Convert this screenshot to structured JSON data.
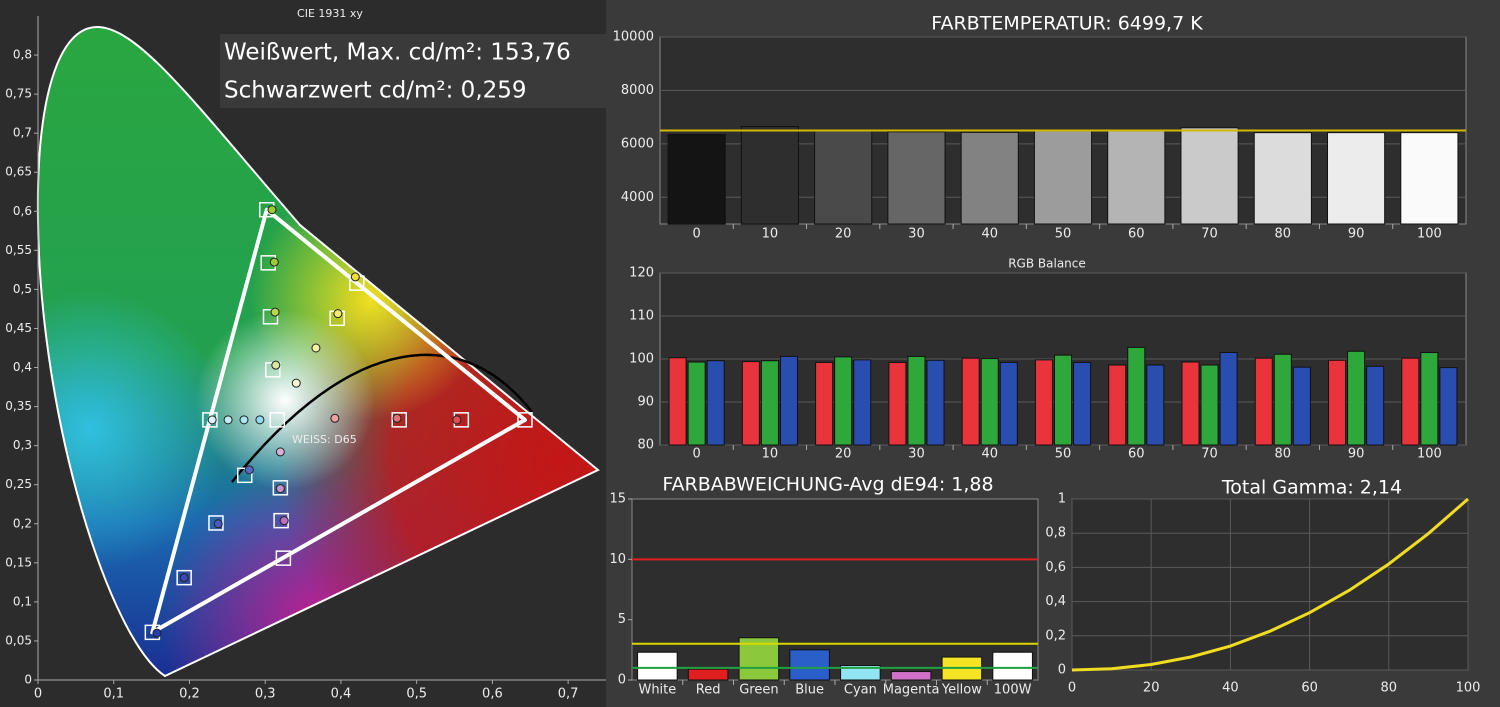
{
  "chart_data": [
    {
      "type": "scatter",
      "title": "CIE 1931 xy",
      "annotations": [
        "Weißwert, Max. cd/m²: 153,76",
        "Schwarzwert cd/m²: 0,259",
        "WEISS: D65"
      ],
      "xlim": [
        0,
        0.75
      ],
      "ylim": [
        0,
        0.85
      ],
      "xticks": [
        0,
        {
          "value": 0.1,
          "label": "0,1"
        },
        {
          "value": 0.2,
          "label": "0,2"
        },
        {
          "value": 0.3,
          "label": "0,3"
        },
        {
          "value": 0.4,
          "label": "0,4"
        },
        {
          "value": 0.5,
          "label": "0,5"
        },
        {
          "value": 0.6,
          "label": "0,6"
        },
        {
          "value": 0.7,
          "label": "0,7"
        }
      ],
      "yticks": [
        0,
        {
          "value": 0.05,
          "label": "0,05"
        },
        {
          "value": 0.1,
          "label": "0,1"
        },
        {
          "value": 0.15,
          "label": "0,15"
        },
        {
          "value": 0.2,
          "label": "0,2"
        },
        {
          "value": 0.25,
          "label": "0,25"
        },
        {
          "value": 0.3,
          "label": "0,3"
        },
        {
          "value": 0.35,
          "label": "0,35"
        },
        {
          "value": 0.4,
          "label": "0,4"
        },
        {
          "value": 0.45,
          "label": "0,45"
        },
        {
          "value": 0.5,
          "label": "0,5"
        },
        {
          "value": 0.55,
          "label": "0,55"
        },
        {
          "value": 0.6,
          "label": "0,6"
        },
        {
          "value": 0.65,
          "label": "0,65"
        },
        {
          "value": 0.7,
          "label": "0,7"
        },
        {
          "value": 0.75,
          "label": "0,75"
        },
        {
          "value": 0.8,
          "label": "0,8"
        }
      ],
      "gamut": {
        "color": "#ffffff",
        "x": [
          0.643,
          0.302,
          0.151
        ],
        "y": [
          0.333,
          0.602,
          0.061
        ]
      },
      "series": [
        {
          "marker": "square",
          "color": "#ffffff",
          "x": [
            0.302,
            0.304,
            0.307,
            0.31,
            0.421,
            0.395,
            0.477,
            0.559,
            0.643,
            0.316,
            0.227,
            0.273,
            0.235,
            0.193,
            0.151,
            0.32,
            0.321,
            0.324
          ],
          "y": [
            0.602,
            0.534,
            0.465,
            0.397,
            0.508,
            0.463,
            0.333,
            0.333,
            0.333,
            0.333,
            0.333,
            0.262,
            0.201,
            0.131,
            0.061,
            0.246,
            0.204,
            0.156
          ]
        },
        {
          "marker": "circle",
          "color": "#222222",
          "colors": [
            "#9acd32",
            "#9acd32",
            "#b5d84a",
            "#d8e8a0",
            "#f0e030",
            "#f2ea70",
            "#f5efa8",
            "#f8f4d0",
            "#f0a0a0",
            "#e87070",
            "#e05050",
            "#d8f4fa",
            "#c0ecf6",
            "#a8e4f2",
            "#90dcee",
            "#5a6ac8",
            "#4a5ac0",
            "#3a4ab8",
            "#2a3ab0",
            "#d8b0d8",
            "#cc90cc",
            "#c070c0"
          ],
          "x": [
            0.309,
            0.312,
            0.313,
            0.314,
            0.419,
            0.396,
            0.367,
            0.341,
            0.392,
            0.474,
            0.553,
            0.23,
            0.251,
            0.272,
            0.293,
            0.279,
            0.238,
            0.193,
            0.157,
            0.32,
            0.32,
            0.325
          ],
          "y": [
            0.602,
            0.535,
            0.471,
            0.403,
            0.516,
            0.469,
            0.425,
            0.38,
            0.335,
            0.335,
            0.333,
            0.333,
            0.333,
            0.333,
            0.333,
            0.269,
            0.2,
            0.131,
            0.06,
            0.292,
            0.245,
            0.204
          ]
        }
      ]
    },
    {
      "type": "bar",
      "title": "FARBTEMPERATUR: 6499,7 K",
      "categories": [
        "0",
        "10",
        "20",
        "30",
        "40",
        "50",
        "60",
        "70",
        "80",
        "90",
        "100"
      ],
      "values": [
        6350,
        6650,
        6480,
        6450,
        6430,
        6480,
        6480,
        6600,
        6420,
        6420,
        6420
      ],
      "colors": [
        "#141414",
        "#2e2e2e",
        "#4a4a4a",
        "#666666",
        "#828282",
        "#9c9c9c",
        "#b4b4b4",
        "#cacaca",
        "#dcdcdc",
        "#ececec",
        "#fafafa"
      ],
      "target": {
        "value": 6500,
        "color": "#d4b800"
      },
      "ylim": [
        3000,
        10000
      ],
      "yticks": [
        4000,
        6000,
        8000,
        10000
      ],
      "grid": true
    },
    {
      "type": "grouped-bar",
      "title": "RGB Balance",
      "categories": [
        "0",
        "10",
        "20",
        "30",
        "40",
        "50",
        "60",
        "70",
        "80",
        "90",
        "100"
      ],
      "series": [
        {
          "color": "#e8343a",
          "values": [
            100.3,
            99.4,
            99.2,
            99.2,
            100.2,
            99.8,
            98.6,
            99.3,
            100.2,
            99.7,
            100.2
          ]
        },
        {
          "color": "#2ea83a",
          "values": [
            99.3,
            99.6,
            100.5,
            100.6,
            100.1,
            100.9,
            102.7,
            98.6,
            101.1,
            101.8,
            101.5
          ]
        },
        {
          "color": "#2a4eb0",
          "values": [
            99.6,
            100.6,
            99.8,
            99.7,
            99.2,
            99.2,
            98.6,
            101.5,
            98.1,
            98.3,
            98.0
          ]
        }
      ],
      "ylim": [
        80,
        120
      ],
      "yticks": [
        80,
        90,
        100,
        110,
        120
      ],
      "grid": true
    },
    {
      "type": "bar",
      "title": "FARBABWEICHUNG-Avg dE94: 1,88",
      "categories": [
        "White",
        "Red",
        "Green",
        "Blue",
        "Cyan",
        "Magenta",
        "Yellow",
        "100W"
      ],
      "values": [
        2.3,
        0.9,
        3.5,
        2.5,
        1.2,
        0.7,
        1.9,
        2.3
      ],
      "colors": [
        "#ffffff",
        "#e02020",
        "#8cc83c",
        "#2a5ec8",
        "#90e4f4",
        "#d070c8",
        "#f4e424",
        "#ffffff"
      ],
      "reference_lines": [
        {
          "value": 10,
          "color": "#e02020"
        },
        {
          "value": 3,
          "color": "#d8d800"
        },
        {
          "value": 1,
          "color": "#20a040"
        }
      ],
      "ylim": [
        0,
        15
      ],
      "yticks": [
        0,
        5,
        10,
        15
      ],
      "grid": false
    },
    {
      "type": "line",
      "title": "Total Gamma: 2,14",
      "x": [
        0,
        10,
        20,
        30,
        40,
        50,
        60,
        70,
        80,
        90,
        100
      ],
      "series": [
        {
          "color": "#f0dc20",
          "values": [
            0,
            0.007,
            0.032,
            0.076,
            0.14,
            0.227,
            0.335,
            0.466,
            0.62,
            0.798,
            1
          ]
        }
      ],
      "xlim": [
        0,
        100
      ],
      "xticks": [
        0,
        20,
        40,
        60,
        80,
        100
      ],
      "ylim": [
        0,
        1
      ],
      "yticks": [
        0,
        {
          "value": 0.2,
          "label": "0,2"
        },
        {
          "value": 0.4,
          "label": "0,4"
        },
        {
          "value": 0.6,
          "label": "0,6"
        },
        {
          "value": 0.8,
          "label": "0,8"
        },
        1
      ],
      "grid": true
    }
  ]
}
